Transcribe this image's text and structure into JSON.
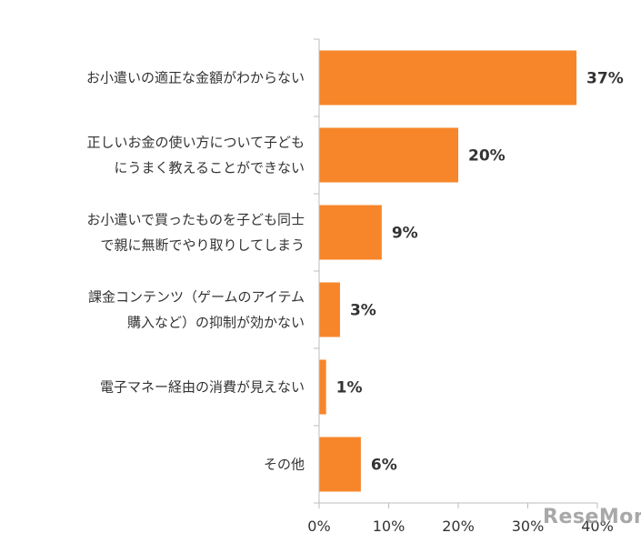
{
  "chart_data": {
    "type": "bar",
    "orientation": "horizontal",
    "categories": [
      [
        "お小遣いの適正な金額がわからない"
      ],
      [
        "正しいお金の使い方について子ども",
        "にうまく教えることができない"
      ],
      [
        "お小遣いで買ったものを子ども同士",
        "で親に無断でやり取りしてしまう"
      ],
      [
        "課金コンテンツ（ゲームのアイテム",
        "購入など）の抑制が効かない"
      ],
      [
        "電子マネー経由の消費が見えない"
      ],
      [
        "その他"
      ]
    ],
    "values": [
      37,
      20,
      9,
      3,
      1,
      6
    ],
    "value_labels": [
      "37%",
      "20%",
      "9%",
      "3%",
      "1%",
      "6%"
    ],
    "xlim": [
      0,
      40
    ],
    "x_ticks": [
      0,
      10,
      20,
      30,
      40
    ],
    "x_tick_labels": [
      "0%",
      "10%",
      "20%",
      "30%",
      "40%"
    ],
    "bar_color": "#F7862A",
    "grid": false,
    "legend": "none"
  },
  "watermark": "ReseMom"
}
